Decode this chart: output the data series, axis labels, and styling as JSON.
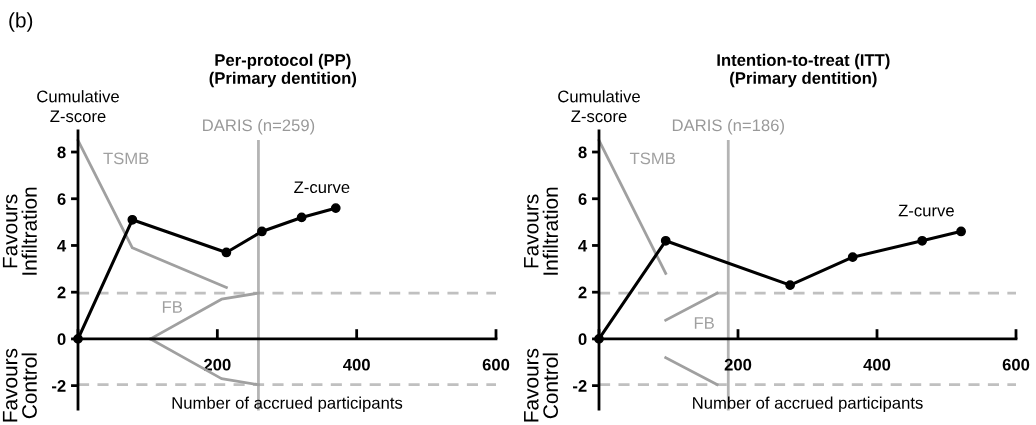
{
  "chart_data": [
    {
      "type": "line",
      "title": "Per-protocol (PP)\n(Primary dentition)",
      "xlabel": "Number of accrued participants",
      "ylabel": "Cumulative\nZ-score",
      "annotations": [
        "(b)",
        "Favours\nInfiltration",
        "Favours\nControl"
      ],
      "xlim": [
        0,
        600
      ],
      "xticks": [
        {
          "value": 0,
          "label": null
        },
        200,
        400,
        600
      ],
      "ylim": [
        -3,
        8.9
      ],
      "yticks": [
        -2,
        0,
        2,
        4,
        6,
        8
      ],
      "grid": false,
      "ref_lines": [
        {
          "axis": "y",
          "value": 1.96,
          "color": "#c0c0c0",
          "line_style": "dashed"
        },
        {
          "axis": "y",
          "value": -1.96,
          "color": "#c0c0c0",
          "line_style": "dashed"
        },
        {
          "axis": "x",
          "value": 259,
          "label": "DARIS (n=259)",
          "color": "#b4b4b4",
          "line_style": "solid"
        }
      ],
      "series": [
        {
          "name": "TSMB",
          "color": "#a0a0a0",
          "marker": "none",
          "x": [
            0,
            78,
            213
          ],
          "values": [
            8.5,
            3.9,
            2.2
          ]
        },
        {
          "name": "FB",
          "color": "#a0a0a0",
          "marker": "none",
          "x": [
            104,
            206,
            259
          ],
          "values": [
            0,
            1.7,
            1.96
          ]
        },
        {
          "color": "#a0a0a0",
          "marker": "none",
          "x": [
            104,
            206,
            259
          ],
          "values": [
            0,
            -1.7,
            -1.96
          ]
        },
        {
          "name": "Z-curve",
          "color": "#000000",
          "marker": "circle",
          "x": [
            0,
            78,
            213,
            264,
            321,
            370
          ],
          "values": [
            0,
            5.1,
            3.7,
            4.6,
            5.2,
            5.6
          ]
        }
      ]
    },
    {
      "type": "line",
      "title": "Intention-to-treat (ITT)\n(Primary dentition)",
      "xlabel": "Number of accrued participants",
      "ylabel": "Cumulative\nZ-score",
      "annotations": [
        "Favours\nInfiltration",
        "Favours\nControl"
      ],
      "xlim": [
        0,
        600
      ],
      "xticks": [
        {
          "value": 0,
          "label": null
        },
        200,
        400,
        600
      ],
      "ylim": [
        -3,
        8.9
      ],
      "yticks": [
        -2,
        0,
        2,
        4,
        6,
        8
      ],
      "grid": false,
      "ref_lines": [
        {
          "axis": "y",
          "value": 1.96,
          "color": "#c0c0c0",
          "line_style": "dashed"
        },
        {
          "axis": "y",
          "value": -1.96,
          "color": "#c0c0c0",
          "line_style": "dashed"
        },
        {
          "axis": "x",
          "value": 186,
          "label": "DARIS (n=186)",
          "color": "#b4b4b4",
          "line_style": "solid"
        }
      ],
      "series": [
        {
          "name": "TSMB",
          "color": "#a0a0a0",
          "marker": "none",
          "x": [
            0,
            96
          ],
          "values": [
            8.5,
            2.8
          ]
        },
        {
          "name": "FB",
          "color": "#a0a0a0",
          "marker": "none",
          "x": [
            96,
            170
          ],
          "values": [
            0.8,
            1.96
          ]
        },
        {
          "color": "#a0a0a0",
          "marker": "none",
          "x": [
            96,
            170
          ],
          "values": [
            -0.8,
            -1.96
          ]
        },
        {
          "name": "Z-curve",
          "color": "#000000",
          "marker": "circle",
          "x": [
            0,
            96,
            275,
            365,
            465,
            521
          ],
          "values": [
            0,
            4.2,
            2.3,
            3.5,
            4.2,
            4.6
          ]
        }
      ]
    }
  ]
}
